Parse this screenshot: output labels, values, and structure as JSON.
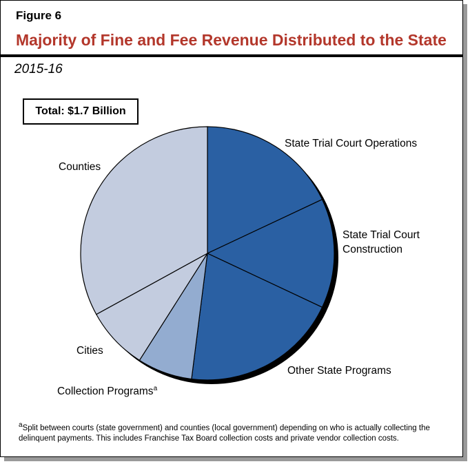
{
  "figure_label": "Figure 6",
  "chart_data": {
    "type": "pie",
    "title": "Majority of Fine and Fee Revenue Distributed to the State",
    "subtitle": "2015-16",
    "annotation": "Total: $1.7 Billion",
    "categories": [
      "State Trial Court Operations",
      "State Trial Court Construction",
      "Other State Programs",
      "Collection Programs",
      "Cities",
      "Counties"
    ],
    "values": [
      18,
      14,
      20,
      7,
      8,
      33
    ],
    "colors": [
      "#2a60a3",
      "#2a60a3",
      "#2a60a3",
      "#93acd0",
      "#c3ccdf",
      "#c3ccdf"
    ]
  },
  "footnote": {
    "marker": "a",
    "text": "Split between courts (state government) and counties (local government) depending on who is actually collecting the delinquent payments. This includes Franchise Tax Board collection costs and private vendor collection costs."
  }
}
